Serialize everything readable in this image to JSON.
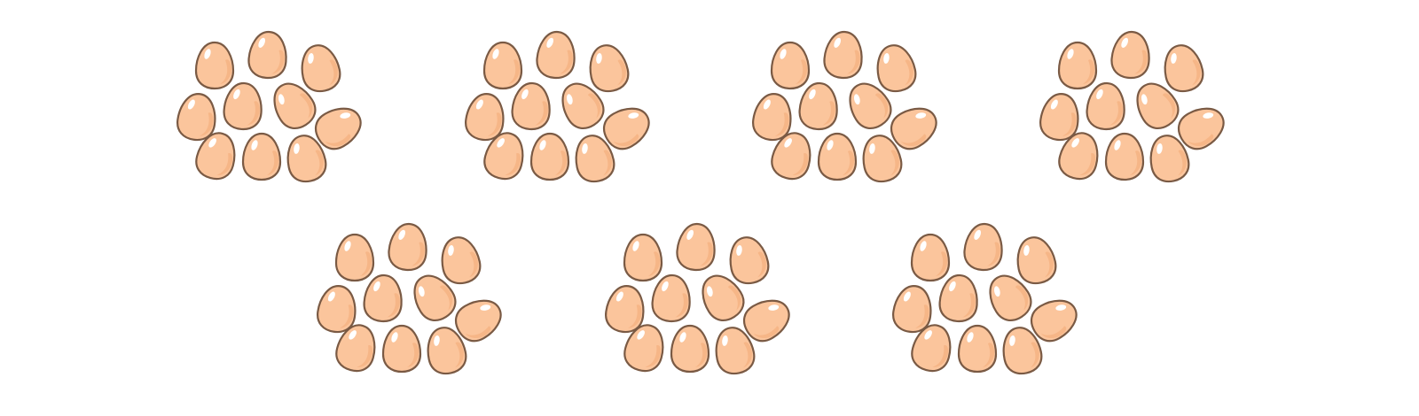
{
  "colors": {
    "background": "#ffffff",
    "egg_fill": "#fbc59c",
    "egg_outline": "#7a5a44",
    "egg_shade": "#f3a977",
    "egg_highlight": "#ffffff"
  },
  "groups": [
    {
      "name": "egg-group",
      "egg_count": 10,
      "icon": "egg-icon"
    },
    {
      "name": "egg-group",
      "egg_count": 10,
      "icon": "egg-icon"
    },
    {
      "name": "egg-group",
      "egg_count": 10,
      "icon": "egg-icon"
    },
    {
      "name": "egg-group",
      "egg_count": 10,
      "icon": "egg-icon"
    },
    {
      "name": "egg-group",
      "egg_count": 10,
      "icon": "egg-icon"
    },
    {
      "name": "egg-group",
      "egg_count": 10,
      "icon": "egg-icon"
    },
    {
      "name": "egg-group",
      "egg_count": 10,
      "icon": "egg-icon"
    }
  ]
}
